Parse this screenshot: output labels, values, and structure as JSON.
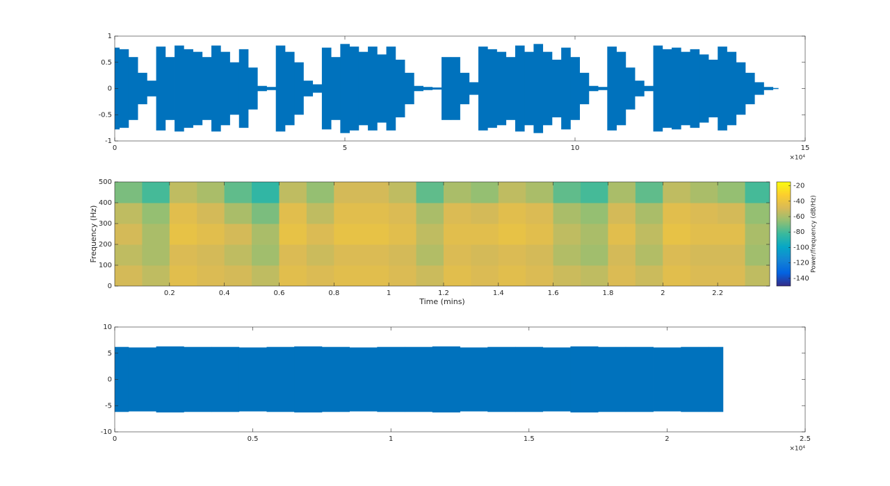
{
  "chart_data": [
    {
      "type": "line",
      "color": "#0072bd",
      "x": [
        0,
        0.2,
        0.4,
        0.6,
        0.8,
        1,
        1.2,
        1.4,
        1.6,
        1.8,
        2,
        2.2,
        2.4,
        2.6,
        2.8,
        3,
        3.2,
        3.4,
        3.6,
        3.8,
        4,
        4.2,
        4.4,
        4.6,
        4.8,
        5,
        5.2,
        5.4,
        5.6,
        5.8,
        6,
        6.2,
        6.4,
        6.6,
        6.8,
        7,
        7.2,
        7.4,
        7.6,
        7.8,
        8,
        8.2,
        8.4,
        8.6,
        8.8,
        9,
        9.2,
        9.4,
        9.6,
        9.8,
        10,
        10.2,
        10.4,
        10.6,
        10.8,
        11,
        11.2,
        11.4,
        11.6,
        11.8,
        12,
        12.2,
        12.4,
        12.6,
        12.8,
        13,
        13.2,
        13.4,
        13.6,
        13.8,
        14,
        14.2,
        14.4
      ],
      "values": [
        0.78,
        0.75,
        0.6,
        0.3,
        0.15,
        0.8,
        0.6,
        0.82,
        0.75,
        0.7,
        0.6,
        0.82,
        0.7,
        0.5,
        0.75,
        0.4,
        0.05,
        0.03,
        0.82,
        0.7,
        0.5,
        0.15,
        0.08,
        0.78,
        0.6,
        0.85,
        0.8,
        0.7,
        0.8,
        0.65,
        0.8,
        0.55,
        0.3,
        0.05,
        0.03,
        0.02,
        0.6,
        0.6,
        0.3,
        0.12,
        0.8,
        0.75,
        0.7,
        0.6,
        0.82,
        0.7,
        0.85,
        0.7,
        0.55,
        0.78,
        0.6,
        0.3,
        0.05,
        0.03,
        0.8,
        0.7,
        0.4,
        0.15,
        0.05,
        0.82,
        0.75,
        0.78,
        0.7,
        0.75,
        0.65,
        0.55,
        0.8,
        0.7,
        0.5,
        0.3,
        0.12,
        0.03,
        0.01
      ],
      "xlim": [
        0,
        15
      ],
      "ylim": [
        -1,
        1
      ],
      "xticks": [
        0,
        5,
        10,
        15
      ],
      "yticks": [
        -1,
        -0.5,
        0,
        0.5,
        1
      ],
      "x_multiplier": "×10⁴"
    },
    {
      "type": "heatmap",
      "x": [
        0.05,
        0.15,
        0.25,
        0.35,
        0.45,
        0.55,
        0.65,
        0.75,
        0.85,
        0.95,
        1.05,
        1.15,
        1.25,
        1.35,
        1.45,
        1.55,
        1.65,
        1.75,
        1.85,
        1.95,
        2.05,
        2.15,
        2.25,
        2.35
      ],
      "y": [
        50,
        150,
        250,
        350,
        450
      ],
      "values": [
        [
          -50,
          -55,
          -45,
          -48,
          -50,
          -55,
          -45,
          -48,
          -45,
          -45,
          -48,
          -52,
          -45,
          -48,
          -45,
          -48,
          -52,
          -55,
          -48,
          -52,
          -45,
          -48,
          -48,
          -55
        ],
        [
          -55,
          -60,
          -48,
          -50,
          -55,
          -62,
          -48,
          -52,
          -48,
          -48,
          -50,
          -58,
          -48,
          -50,
          -48,
          -50,
          -58,
          -62,
          -50,
          -58,
          -48,
          -50,
          -50,
          -62
        ],
        [
          -50,
          -60,
          -42,
          -45,
          -50,
          -60,
          -42,
          -48,
          -42,
          -42,
          -45,
          -55,
          -45,
          -45,
          -42,
          -45,
          -55,
          -60,
          -45,
          -55,
          -42,
          -45,
          -45,
          -60
        ],
        [
          -55,
          -65,
          -45,
          -50,
          -60,
          -70,
          -45,
          -55,
          -45,
          -45,
          -48,
          -60,
          -48,
          -50,
          -45,
          -48,
          -60,
          -65,
          -50,
          -60,
          -45,
          -48,
          -50,
          -65
        ],
        [
          -70,
          -80,
          -55,
          -60,
          -75,
          -85,
          -55,
          -65,
          -50,
          -50,
          -55,
          -75,
          -60,
          -65,
          -55,
          -60,
          -75,
          -80,
          -60,
          -75,
          -55,
          -60,
          -65,
          -80
        ]
      ],
      "xlim": [
        0,
        2.39
      ],
      "ylim": [
        0,
        500
      ],
      "xticks": [
        0.2,
        0.4,
        0.6,
        0.8,
        1,
        1.2,
        1.4,
        1.6,
        1.8,
        2,
        2.2
      ],
      "yticks": [
        0,
        100,
        200,
        300,
        400,
        500
      ],
      "x_label": "Time (mins)",
      "y_label": "Frequency (Hz)",
      "colorbar": {
        "label": "Power/frequency (dB/Hz)",
        "clim": [
          -150,
          -15
        ],
        "ticks": [
          -140,
          -120,
          -100,
          -80,
          -60,
          -40,
          -20
        ],
        "colormap": [
          "#352a87",
          "#0363e1",
          "#1485d4",
          "#06a7c6",
          "#38b99e",
          "#92bf73",
          "#d9ba56",
          "#fcce2e",
          "#f9fb0e"
        ]
      }
    },
    {
      "type": "line",
      "color": "#0072bd",
      "x": [
        0,
        0.1,
        0.2,
        0.3,
        0.4,
        0.5,
        0.6,
        0.7,
        0.8,
        0.9,
        1,
        1.1,
        1.2,
        1.3,
        1.4,
        1.5,
        1.6,
        1.7,
        1.8,
        1.9,
        2,
        2.1,
        2.2
      ],
      "values": [
        6.2,
        6.1,
        6.3,
        6.2,
        6.2,
        6.1,
        6.2,
        6.3,
        6.2,
        6.1,
        6.2,
        6.2,
        6.3,
        6.1,
        6.2,
        6.2,
        6.1,
        6.3,
        6.2,
        6.2,
        6.1,
        6.2,
        6.2
      ],
      "xlim": [
        0,
        2.5
      ],
      "ylim": [
        -10,
        10
      ],
      "xticks": [
        0,
        0.5,
        1,
        1.5,
        2,
        2.5
      ],
      "yticks": [
        -10,
        -5,
        0,
        5,
        10
      ],
      "x_multiplier": "×10⁴"
    }
  ]
}
